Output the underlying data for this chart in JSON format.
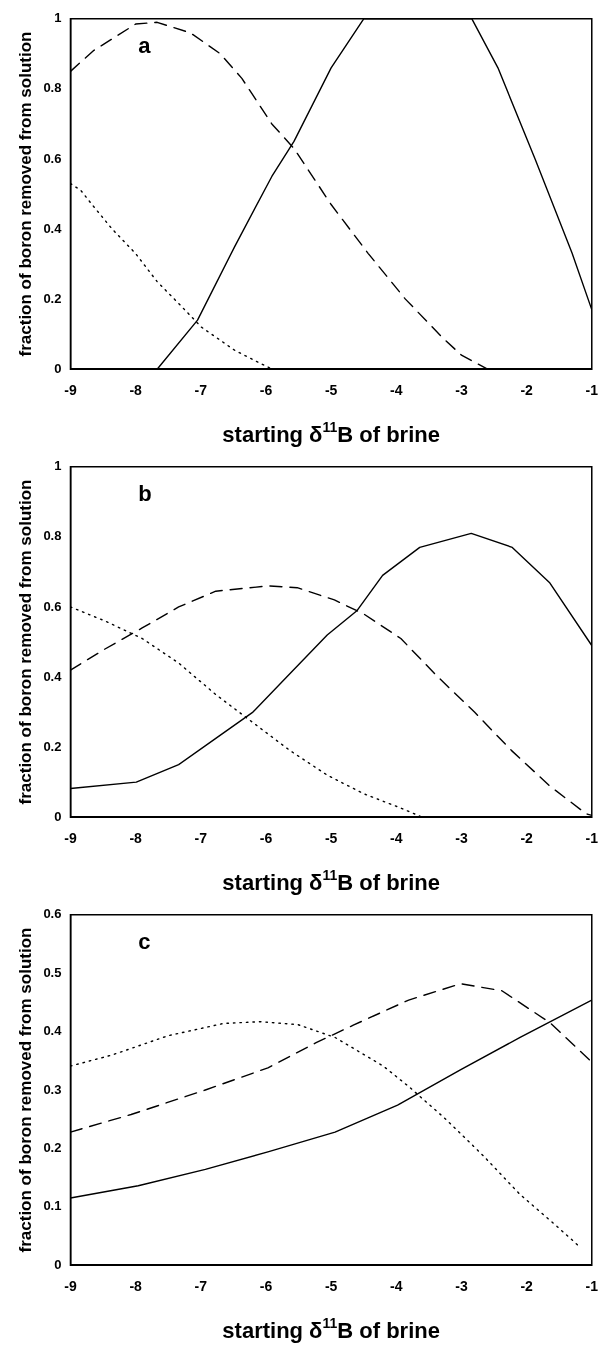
{
  "chart_data": [
    {
      "type": "line",
      "annotations": [
        "a"
      ],
      "xlabel": "starting δ$^{11}$B of brine",
      "ylabel": "fraction of boron removed from solution",
      "xlim": [
        -9,
        -1
      ],
      "xticks": [
        -9,
        -8,
        -7,
        -6,
        -5,
        -4,
        -3,
        -2,
        -1
      ],
      "ylim": [
        0,
        1
      ],
      "yticks": [
        0,
        0.2,
        0.4,
        0.6,
        0.8,
        1
      ],
      "grid": false,
      "legend": false,
      "series": [
        {
          "color": "#000000",
          "line_style": "solid",
          "x": [
            -7.67,
            -7.05,
            -6.48,
            -5.91,
            -5.57,
            -5.0,
            -4.5,
            -2.84,
            -2.44,
            -1.87,
            -1.3,
            -1
          ],
          "values": [
            0,
            0.14,
            0.35,
            0.55,
            0.65,
            0.86,
            1,
            1,
            0.86,
            0.6,
            0.33,
            0.17
          ]
        },
        {
          "color": "#000000",
          "line_style": "dashed",
          "x": [
            -9,
            -8.64,
            -8.0,
            -7.67,
            -7.16,
            -6.7,
            -6.37,
            -5.91,
            -5.57,
            -5.0,
            -4.43,
            -3.86,
            -3.29,
            -3.0,
            -2.6
          ],
          "values": [
            0.85,
            0.91,
            0.985,
            0.99,
            0.96,
            0.9,
            0.83,
            0.7,
            0.63,
            0.47,
            0.33,
            0.2,
            0.09,
            0.04,
            0
          ]
        },
        {
          "color": "#000000",
          "line_style": "dotted",
          "x": [
            -9,
            -8.84,
            -8.67,
            -8.36,
            -8.0,
            -7.67,
            -7.3,
            -6.99,
            -6.48,
            -6.08,
            -5.9
          ],
          "values": [
            0.53,
            0.51,
            0.47,
            0.4,
            0.33,
            0.25,
            0.18,
            0.12,
            0.054,
            0.016,
            0
          ]
        }
      ]
    },
    {
      "type": "line",
      "annotations": [
        "b"
      ],
      "xlabel": "starting δ$^{11}$B of brine",
      "ylabel": "fraction of boron removed from solution",
      "xlim": [
        -9,
        -1
      ],
      "xticks": [
        -9,
        -8,
        -7,
        -6,
        -5,
        -4,
        -3,
        -2,
        -1
      ],
      "ylim": [
        0,
        1
      ],
      "yticks": [
        0,
        0.2,
        0.4,
        0.6,
        0.8,
        1
      ],
      "grid": false,
      "legend": false,
      "series": [
        {
          "color": "#000000",
          "line_style": "solid",
          "x": [
            -9,
            -7.99,
            -7.34,
            -6.77,
            -6.2,
            -5.63,
            -5.06,
            -4.6,
            -4.21,
            -3.64,
            -2.85,
            -2.22,
            -1.65,
            -1
          ],
          "values": [
            0.082,
            0.1,
            0.15,
            0.225,
            0.3,
            0.41,
            0.52,
            0.59,
            0.69,
            0.77,
            0.81,
            0.77,
            0.67,
            0.49
          ]
        },
        {
          "color": "#000000",
          "line_style": "dashed",
          "x": [
            -9,
            -8.47,
            -7.9,
            -7.34,
            -6.77,
            -5.97,
            -5.52,
            -4.95,
            -4.5,
            -3.93,
            -3.36,
            -2.8,
            -2.23,
            -1.65,
            -1.09,
            -1
          ],
          "values": [
            0.42,
            0.48,
            0.54,
            0.6,
            0.645,
            0.66,
            0.655,
            0.62,
            0.58,
            0.51,
            0.4,
            0.3,
            0.19,
            0.09,
            0.01,
            0.005
          ]
        },
        {
          "color": "#000000",
          "line_style": "dotted",
          "x": [
            -9,
            -8.47,
            -7.9,
            -7.34,
            -6.77,
            -6.2,
            -5.63,
            -5.06,
            -4.5,
            -3.93,
            -3.6
          ],
          "values": [
            0.6,
            0.56,
            0.51,
            0.44,
            0.35,
            0.27,
            0.19,
            0.12,
            0.067,
            0.026,
            0
          ]
        }
      ]
    },
    {
      "type": "line",
      "annotations": [
        "c"
      ],
      "xlabel": "starting δ$^{11}$B of brine",
      "ylabel": "fraction of boron removed from solution",
      "xlim": [
        -9,
        -1
      ],
      "xticks": [
        -9,
        -8,
        -7,
        -6,
        -5,
        -4,
        -3,
        -2,
        -1
      ],
      "ylim": [
        0,
        0.6
      ],
      "yticks": [
        0,
        0.1,
        0.2,
        0.3,
        0.4,
        0.5,
        0.6
      ],
      "grid": false,
      "legend": false,
      "series": [
        {
          "color": "#000000",
          "line_style": "solid",
          "x": [
            -9,
            -7.96,
            -6.93,
            -5.97,
            -4.94,
            -3.98,
            -3.01,
            -2.1,
            -1
          ],
          "values": [
            0.115,
            0.136,
            0.164,
            0.194,
            0.228,
            0.274,
            0.335,
            0.39,
            0.454
          ]
        },
        {
          "color": "#000000",
          "line_style": "dashed",
          "x": [
            -9,
            -8.07,
            -6.93,
            -5.97,
            -5.23,
            -4.66,
            -3.81,
            -3.01,
            -2.38,
            -1.64,
            -1
          ],
          "values": [
            0.228,
            0.258,
            0.3,
            0.338,
            0.381,
            0.411,
            0.454,
            0.482,
            0.47,
            0.415,
            0.348
          ]
        },
        {
          "color": "#000000",
          "line_style": "dotted",
          "x": [
            -9,
            -8.36,
            -7.5,
            -6.65,
            -6.08,
            -5.51,
            -4.94,
            -4.2,
            -3.81,
            -3.24,
            -2.67,
            -2.1,
            -1.53,
            -1.19
          ],
          "values": [
            0.341,
            0.36,
            0.393,
            0.414,
            0.417,
            0.412,
            0.39,
            0.341,
            0.306,
            0.25,
            0.188,
            0.121,
            0.066,
            0.032
          ]
        }
      ]
    }
  ]
}
